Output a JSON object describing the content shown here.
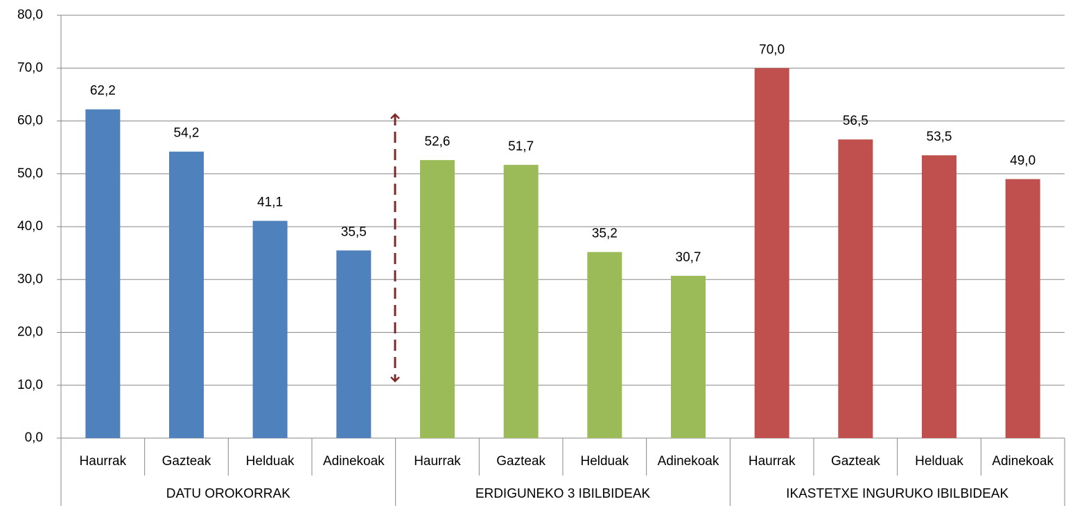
{
  "chart_data": {
    "type": "bar",
    "groups": [
      {
        "name": "DATU OROKORRAK",
        "color": "#4f81bd",
        "categories": [
          "Haurrak",
          "Gazteak",
          "Helduak",
          "Adinekoak"
        ],
        "values": [
          62.2,
          54.2,
          41.1,
          35.5
        ],
        "value_labels": [
          "62,2",
          "54,2",
          "41,1",
          "35,5"
        ]
      },
      {
        "name": "ERDIGUNEKO 3 IBILBIDEAK",
        "color": "#9bbb59",
        "categories": [
          "Haurrak",
          "Gazteak",
          "Helduak",
          "Adinekoak"
        ],
        "values": [
          52.6,
          51.7,
          35.2,
          30.7
        ],
        "value_labels": [
          "52,6",
          "51,7",
          "35,2",
          "30,7"
        ]
      },
      {
        "name": "IKASTETXE INGURUKO IBILBIDEAK",
        "color": "#c0504d",
        "categories": [
          "Haurrak",
          "Gazteak",
          "Helduak",
          "Adinekoak"
        ],
        "values": [
          70.0,
          56.5,
          53.5,
          49.0
        ],
        "value_labels": [
          "70,0",
          "56,5",
          "53,5",
          "49,0"
        ]
      }
    ],
    "ylim": [
      0,
      80
    ],
    "yticks": [
      {
        "value": 0,
        "label": "0,0"
      },
      {
        "value": 10,
        "label": "10,0"
      },
      {
        "value": 20,
        "label": "20,0"
      },
      {
        "value": 30,
        "label": "30,0"
      },
      {
        "value": 40,
        "label": "40,0"
      },
      {
        "value": 50,
        "label": "50,0"
      },
      {
        "value": 60,
        "label": "60,0"
      },
      {
        "value": 70,
        "label": "70,0"
      },
      {
        "value": 80,
        "label": "80,0"
      }
    ],
    "grid": true
  }
}
